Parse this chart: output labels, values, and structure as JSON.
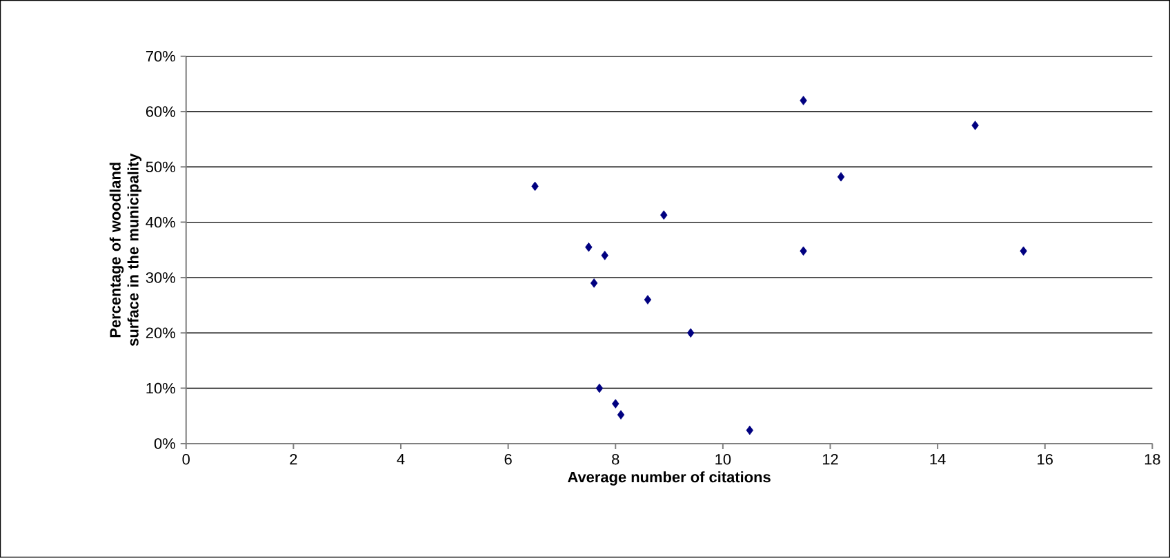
{
  "chart_data": {
    "type": "scatter",
    "xlabel": "Average number of citations",
    "ylabel": "Percentage of woodland surface in the municipality",
    "x": [
      6.5,
      7.5,
      7.8,
      7.6,
      8.6,
      9.4,
      7.7,
      8.0,
      8.1,
      10.5,
      8.9,
      11.5,
      14.7,
      12.2,
      11.5,
      15.6
    ],
    "values": [
      46.5,
      35.5,
      34,
      29,
      26,
      20,
      10,
      7.2,
      5.2,
      2.4,
      41.3,
      62,
      57.5,
      48.2,
      34.8,
      34.8
    ],
    "color": "#000080",
    "marker": "diamond",
    "grid": "y",
    "xlim": [
      0,
      18
    ],
    "xticks": [
      0,
      2,
      4,
      6,
      8,
      10,
      12,
      14,
      16,
      18
    ],
    "ylim": [
      0,
      70
    ],
    "yticks": [
      {
        "value": 0,
        "label": "0%"
      },
      {
        "value": 10,
        "label": "10%"
      },
      {
        "value": 20,
        "label": "20%"
      },
      {
        "value": 30,
        "label": "30%"
      },
      {
        "value": 40,
        "label": "40%"
      },
      {
        "value": 50,
        "label": "50%"
      },
      {
        "value": 60,
        "label": "60%"
      },
      {
        "value": 70,
        "label": "70%"
      }
    ]
  }
}
